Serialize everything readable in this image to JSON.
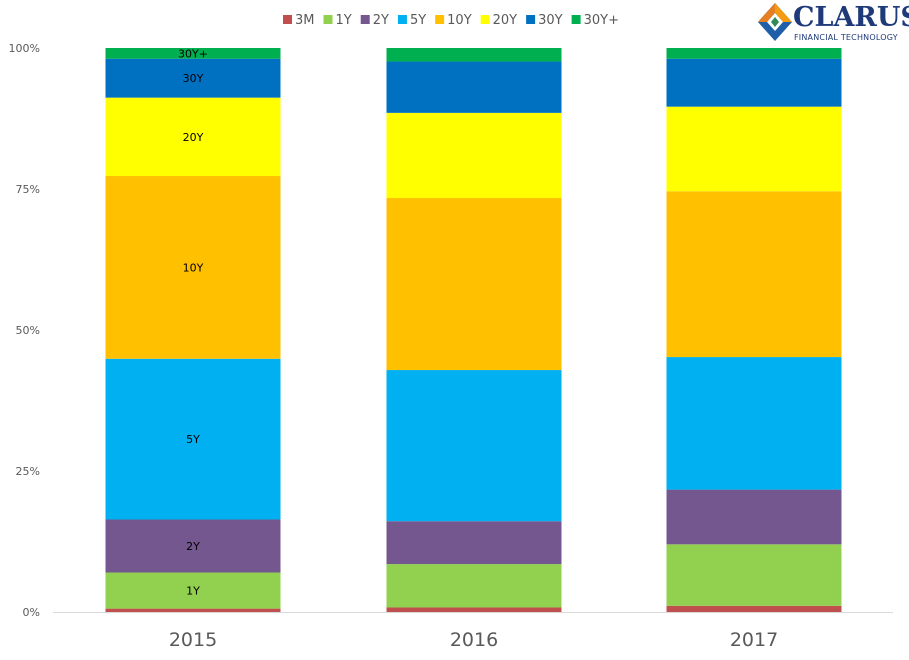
{
  "chart_data": {
    "type": "bar",
    "stacked": true,
    "normalized": true,
    "categories": [
      "2015",
      "2016",
      "2017"
    ],
    "yticks": [
      "0%",
      "25%",
      "50%",
      "75%",
      "100%"
    ],
    "ylim": [
      0,
      100
    ],
    "legend_position": "top",
    "series": [
      {
        "name": "3M",
        "color": "#c0504d",
        "values": [
          0.6,
          0.8,
          1.1
        ]
      },
      {
        "name": "1Y",
        "color": "#92d050",
        "values": [
          6.4,
          7.7,
          10.9
        ]
      },
      {
        "name": "2Y",
        "color": "#74578f",
        "values": [
          9.4,
          7.6,
          9.7
        ]
      },
      {
        "name": "5Y",
        "color": "#00b0f0",
        "values": [
          28.5,
          26.8,
          23.5
        ]
      },
      {
        "name": "10Y",
        "color": "#ffc000",
        "values": [
          32.4,
          30.5,
          29.4
        ]
      },
      {
        "name": "20Y",
        "color": "#ffff00",
        "values": [
          13.9,
          15.1,
          15.0
        ]
      },
      {
        "name": "30Y",
        "color": "#0070c0",
        "values": [
          6.9,
          9.1,
          8.5
        ]
      },
      {
        "name": "30Y+",
        "color": "#00b050",
        "values": [
          1.9,
          2.4,
          1.9
        ]
      }
    ],
    "data_labels": [
      {
        "category": "2015",
        "series": "1Y",
        "text": "1Y"
      },
      {
        "category": "2015",
        "series": "2Y",
        "text": "2Y"
      },
      {
        "category": "2015",
        "series": "5Y",
        "text": "5Y"
      },
      {
        "category": "2015",
        "series": "10Y",
        "text": "10Y"
      },
      {
        "category": "2015",
        "series": "20Y",
        "text": "20Y"
      },
      {
        "category": "2015",
        "series": "30Y",
        "text": "30Y"
      },
      {
        "category": "2015",
        "series": "30Y+",
        "text": "30Y+"
      }
    ]
  },
  "logo": {
    "name": "CLARUS",
    "tagline": "FINANCIAL TECHNOLOGY"
  }
}
